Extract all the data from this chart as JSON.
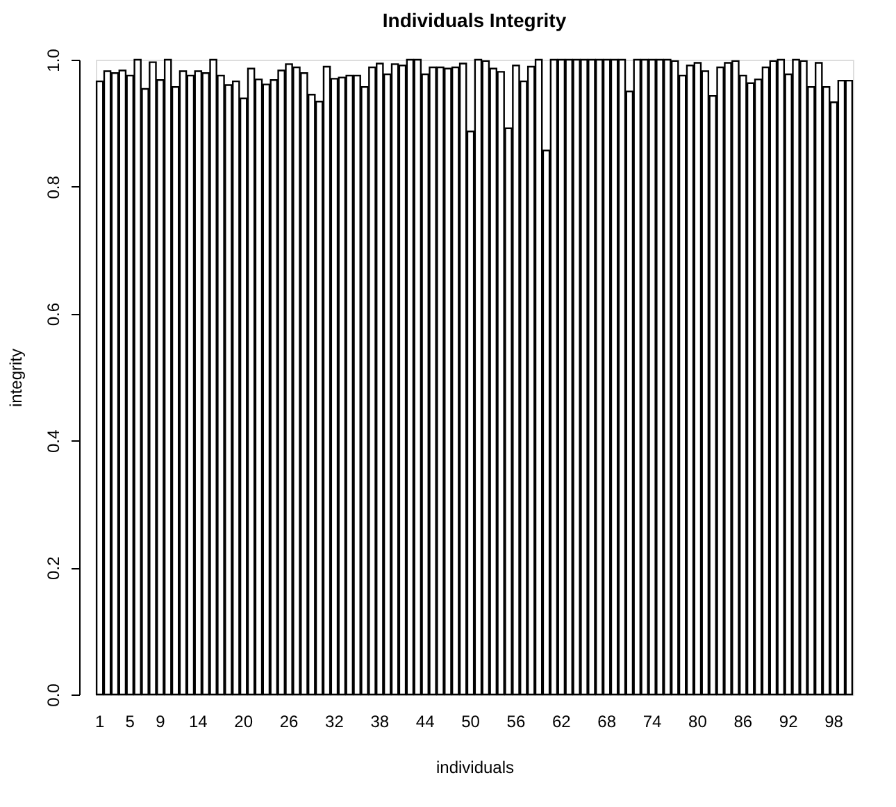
{
  "chart_data": {
    "type": "bar",
    "title": "Individuals Integrity",
    "xlabel": "individuals",
    "ylabel": "integrity",
    "categories": [
      "1",
      null,
      null,
      null,
      "5",
      null,
      null,
      null,
      "9",
      null,
      null,
      null,
      null,
      "14",
      null,
      null,
      null,
      null,
      null,
      "20",
      null,
      null,
      null,
      null,
      null,
      "26",
      null,
      null,
      null,
      null,
      null,
      "32",
      null,
      null,
      null,
      null,
      null,
      "38",
      null,
      null,
      null,
      null,
      null,
      "44",
      null,
      null,
      null,
      null,
      null,
      "50",
      null,
      null,
      null,
      null,
      null,
      "56",
      null,
      null,
      null,
      null,
      null,
      "62",
      null,
      null,
      null,
      null,
      null,
      "68",
      null,
      null,
      null,
      null,
      null,
      "74",
      null,
      null,
      null,
      null,
      null,
      "80",
      null,
      null,
      null,
      null,
      null,
      "86",
      null,
      null,
      null,
      null,
      null,
      "92",
      null,
      null,
      null,
      null,
      null,
      "98",
      null,
      null
    ],
    "values": [
      0.966,
      0.982,
      0.979,
      0.983,
      0.975,
      1.0,
      0.954,
      0.996,
      0.968,
      1.0,
      0.957,
      0.982,
      0.975,
      0.982,
      0.979,
      1.0,
      0.975,
      0.96,
      0.966,
      0.939,
      0.986,
      0.969,
      0.961,
      0.968,
      0.983,
      0.993,
      0.988,
      0.979,
      0.945,
      0.934,
      0.989,
      0.97,
      0.972,
      0.975,
      0.975,
      0.957,
      0.988,
      0.994,
      0.977,
      0.993,
      0.991,
      1.0,
      1.0,
      0.977,
      0.988,
      0.988,
      0.986,
      0.988,
      0.994,
      0.887,
      1.0,
      0.998,
      0.986,
      0.981,
      0.892,
      0.991,
      0.966,
      0.989,
      1.0,
      0.857,
      1.0,
      1.0,
      1.0,
      1.0,
      1.0,
      1.0,
      1.0,
      1.0,
      1.0,
      1.0,
      0.95,
      1.0,
      1.0,
      1.0,
      1.0,
      1.0,
      0.998,
      0.975,
      0.991,
      0.995,
      0.982,
      0.943,
      0.988,
      0.995,
      0.998,
      0.975,
      0.963,
      0.969,
      0.988,
      0.998,
      1.0,
      0.977,
      1.0,
      0.998,
      0.957,
      0.995,
      0.957,
      0.933,
      0.967,
      0.967
    ],
    "color": "#ffffff",
    "ylim": [
      0,
      1
    ],
    "yticks": [
      {
        "value": 0,
        "label": "0.0"
      },
      0.2,
      0.4,
      0.6,
      0.8,
      {
        "value": 1,
        "label": "1.0"
      }
    ],
    "grid": false
  }
}
